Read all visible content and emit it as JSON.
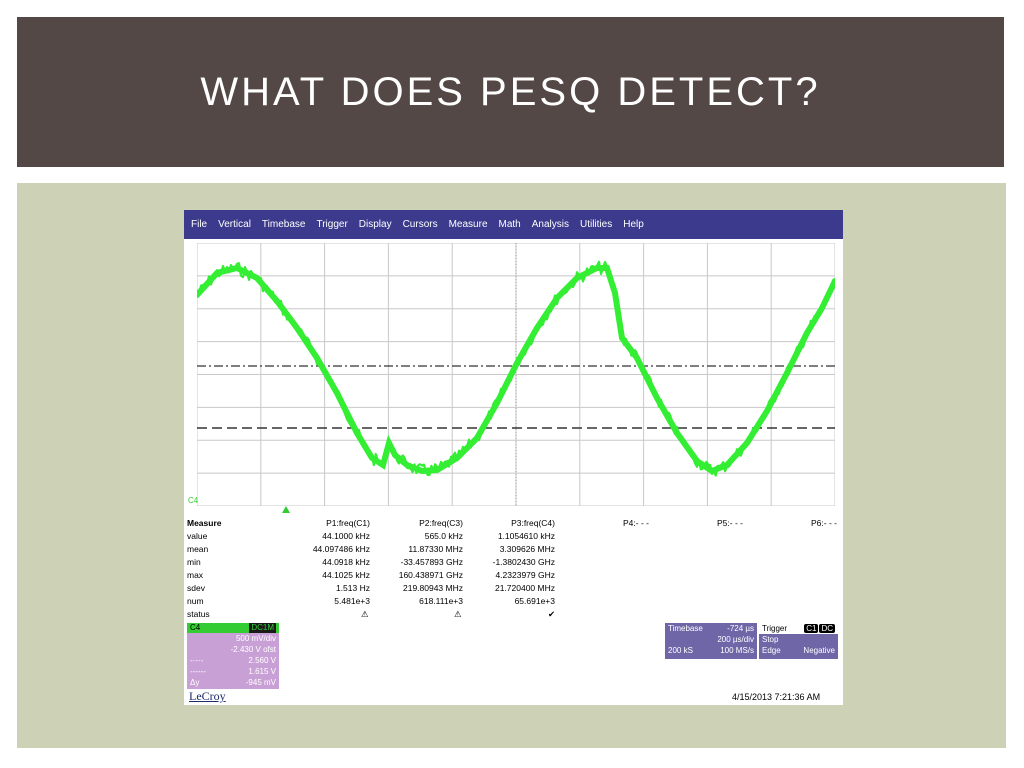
{
  "slide": {
    "title": "WHAT DOES PESQ DETECT?",
    "colors": {
      "title_bg": "#534846",
      "content_bg": "#cdd1b5",
      "trace": "#33ee33",
      "menubar": "#3b3a8c"
    }
  },
  "scope": {
    "menu": [
      "File",
      "Vertical",
      "Timebase",
      "Trigger",
      "Display",
      "Cursors",
      "Measure",
      "Math",
      "Analysis",
      "Utilities",
      "Help"
    ],
    "channel_marker": "C4",
    "measure": {
      "label": "Measure",
      "columns": [
        "P1:freq(C1)",
        "P2:freq(C3)",
        "P3:freq(C4)",
        "P4:- - -",
        "P5:- - -",
        "P6:- - -"
      ],
      "rows": [
        {
          "label": "value",
          "values": [
            "44.1000 kHz",
            "565.0 kHz",
            "1.1054610 kHz"
          ]
        },
        {
          "label": "mean",
          "values": [
            "44.097486 kHz",
            "11.87330 MHz",
            "3.309626 MHz"
          ]
        },
        {
          "label": "min",
          "values": [
            "44.0918 kHz",
            "-33.457893 GHz",
            "-1.3802430 GHz"
          ]
        },
        {
          "label": "max",
          "values": [
            "44.1025 kHz",
            "160.438971 GHz",
            "4.2323979 GHz"
          ]
        },
        {
          "label": "sdev",
          "values": [
            "1.513 Hz",
            "219.80943 MHz",
            "21.720400 MHz"
          ]
        },
        {
          "label": "num",
          "values": [
            "5.481e+3",
            "618.111e+3",
            "65.691e+3"
          ]
        },
        {
          "label": "status",
          "values": [
            "⚠",
            "⚠",
            "✔"
          ]
        }
      ]
    },
    "channel_box": {
      "name": "C4",
      "coupling": "DC1M",
      "lines": [
        "500 mV/div",
        "-2.430 V ofst"
      ],
      "cursor_lines": [
        {
          "label": "-·-·-",
          "value": "2.560 V"
        },
        {
          "label": "------",
          "value": "1.615 V"
        },
        {
          "label": "Δy",
          "value": "-945 mV"
        }
      ]
    },
    "timebase": {
      "label": "Timebase",
      "delay": "-724 µs",
      "per_div": "200 µs/div",
      "samples": "200 kS",
      "rate": "100 MS/s"
    },
    "trigger": {
      "label": "Trigger",
      "chips": [
        "C1",
        "DC"
      ],
      "mode": "Stop",
      "type": "Edge",
      "slope": "Negative"
    },
    "brand": "LeCroy",
    "timestamp": "4/15/2013 7:21:36 AM"
  }
}
